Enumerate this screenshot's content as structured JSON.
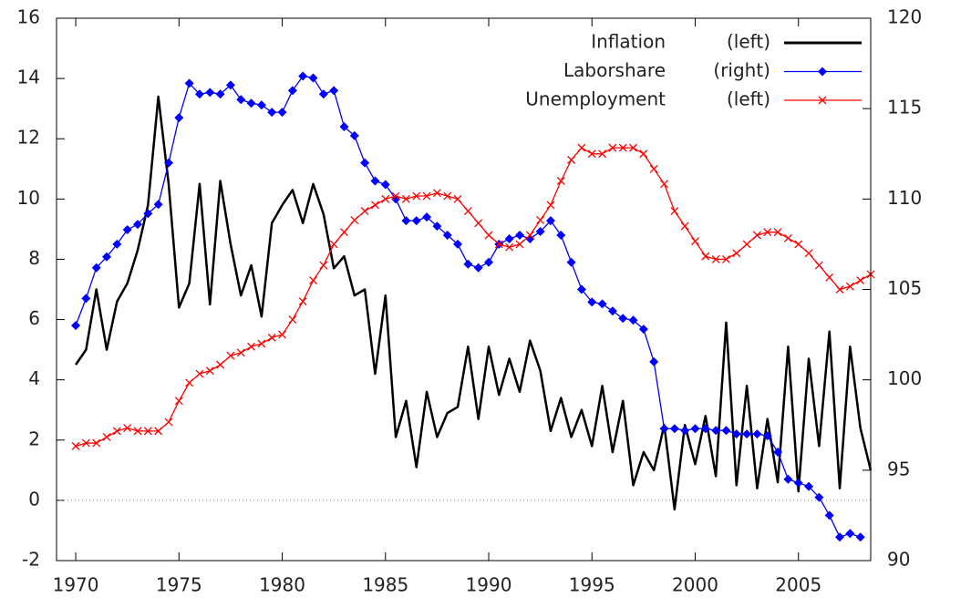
{
  "chart_data": {
    "type": "line",
    "x": [
      1970,
      1970.5,
      1971,
      1971.5,
      1972,
      1972.5,
      1973,
      1973.5,
      1974,
      1974.5,
      1975,
      1975.5,
      1976,
      1976.5,
      1977,
      1977.5,
      1978,
      1978.5,
      1979,
      1979.5,
      1980,
      1980.5,
      1981,
      1981.5,
      1982,
      1982.5,
      1983,
      1983.5,
      1984,
      1984.5,
      1985,
      1985.5,
      1986,
      1986.5,
      1987,
      1987.5,
      1988,
      1988.5,
      1989,
      1989.5,
      1990,
      1990.5,
      1991,
      1991.5,
      1992,
      1992.5,
      1993,
      1993.5,
      1994,
      1994.5,
      1995,
      1995.5,
      1996,
      1996.5,
      1997,
      1997.5,
      1998,
      1998.5,
      1999,
      1999.5,
      2000,
      2000.5,
      2001,
      2001.5,
      2002,
      2002.5,
      2003,
      2003.5,
      2004,
      2004.5,
      2005,
      2005.5,
      2006,
      2006.5,
      2007,
      2007.5,
      2008,
      2008.5
    ],
    "series": [
      {
        "name": "Inflation",
        "axis_note": "(left)",
        "color": "#000000",
        "marker": "none",
        "values": [
          4.5,
          5.0,
          7.0,
          5.0,
          6.6,
          7.2,
          8.3,
          9.8,
          13.4,
          10.5,
          6.4,
          7.2,
          10.5,
          6.5,
          10.6,
          8.5,
          6.8,
          7.8,
          6.1,
          9.2,
          9.8,
          10.3,
          9.2,
          10.5,
          9.5,
          7.7,
          8.1,
          6.8,
          7.0,
          4.2,
          6.8,
          2.1,
          3.3,
          1.1,
          3.6,
          2.1,
          2.9,
          3.1,
          5.1,
          2.7,
          5.1,
          3.5,
          4.7,
          3.6,
          5.3,
          4.3,
          2.3,
          3.4,
          2.1,
          3.0,
          1.8,
          3.8,
          1.6,
          3.3,
          0.5,
          1.6,
          1.0,
          2.5,
          -0.3,
          2.5,
          1.2,
          2.8,
          0.8,
          5.9,
          0.5,
          3.8,
          0.4,
          2.7,
          0.6,
          5.1,
          0.3,
          4.7,
          1.8,
          5.6,
          0.4,
          5.1,
          2.4,
          1.0
        ]
      },
      {
        "name": "Laborshare",
        "axis_note": "(right)",
        "axis": "y2",
        "color": "#0000ff",
        "marker": "diamond",
        "values": [
          103.0,
          104.5,
          106.2,
          106.8,
          107.5,
          108.3,
          108.6,
          109.2,
          109.7,
          112.0,
          114.5,
          116.4,
          115.8,
          115.9,
          115.8,
          116.3,
          115.5,
          115.3,
          115.2,
          114.8,
          114.8,
          116.0,
          116.8,
          116.7,
          115.8,
          116.0,
          114.0,
          113.5,
          112.0,
          111.0,
          110.8,
          110.0,
          108.8,
          108.8,
          109.0,
          108.5,
          108.0,
          107.5,
          106.4,
          106.2,
          106.5,
          107.5,
          107.8,
          108.0,
          107.8,
          108.2,
          108.8,
          108.0,
          106.5,
          105.0,
          104.3,
          104.2,
          103.8,
          103.4,
          103.3,
          102.8,
          101.0,
          97.3,
          97.3,
          97.2,
          97.3,
          97.3,
          97.2,
          97.2,
          97.0,
          97.0,
          97.0,
          96.9,
          96.0,
          94.5,
          94.3,
          94.1,
          93.5,
          92.5,
          91.3,
          91.5,
          91.3,
          null
        ]
      },
      {
        "name": "Unemployment",
        "axis_note": "(left)",
        "color": "#ff0000",
        "marker": "x",
        "values": [
          1.8,
          1.9,
          1.9,
          2.1,
          2.3,
          2.4,
          2.3,
          2.3,
          2.3,
          2.6,
          3.3,
          3.9,
          4.2,
          4.3,
          4.5,
          4.8,
          4.9,
          5.1,
          5.2,
          5.4,
          5.5,
          6.0,
          6.6,
          7.3,
          7.8,
          8.5,
          8.9,
          9.3,
          9.6,
          9.8,
          10.0,
          10.1,
          10.0,
          10.1,
          10.1,
          10.2,
          10.1,
          10.0,
          9.6,
          9.2,
          8.8,
          8.5,
          8.4,
          8.5,
          8.8,
          9.3,
          9.8,
          10.6,
          11.3,
          11.7,
          11.5,
          11.5,
          11.7,
          11.7,
          11.7,
          11.5,
          11.0,
          10.5,
          9.6,
          9.1,
          8.6,
          8.1,
          8.0,
          8.0,
          8.2,
          8.5,
          8.8,
          8.9,
          8.9,
          8.7,
          8.5,
          8.2,
          7.8,
          7.4,
          7.0,
          7.1,
          7.3,
          7.5
        ]
      }
    ],
    "xlim": [
      1969.07,
      2008.5
    ],
    "xticks": [
      1970,
      1975,
      1980,
      1985,
      1990,
      1995,
      2000,
      2005
    ],
    "ylim": [
      -2,
      16
    ],
    "yticks": [
      -2,
      0,
      2,
      4,
      6,
      8,
      10,
      12,
      14,
      16
    ],
    "y2lim": [
      90,
      120
    ],
    "y2ticks": [
      90,
      95,
      100,
      105,
      110,
      115,
      120
    ],
    "zero_line": true,
    "legend": "top-right"
  }
}
